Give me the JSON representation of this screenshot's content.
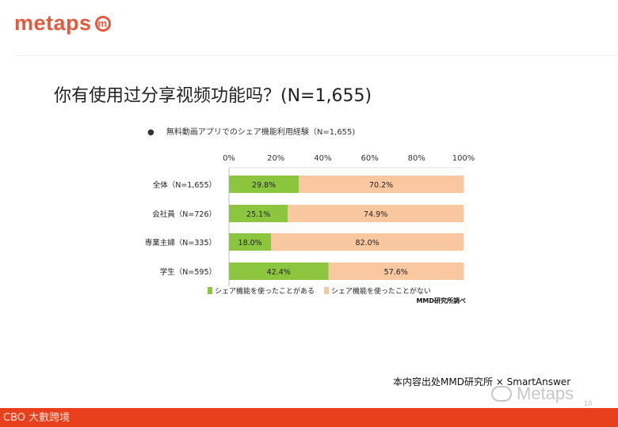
{
  "logo": {
    "text": "metaps",
    "mark": "m"
  },
  "title": "你有使用过分享视频功能吗？(N=1,655)",
  "chart_heading": {
    "bullet": "●",
    "text": "無料動画アプリでのシェア機能利用経験（N=1,655)"
  },
  "chart_data": {
    "type": "bar",
    "orientation": "horizontal",
    "stacked": true,
    "percent": true,
    "categories": [
      "全体（N=1,655）",
      "会社員（N=726）",
      "専業主婦（N=335）",
      "学生（N=595）"
    ],
    "series": [
      {
        "name": "シェア機能を使ったことがある",
        "values": [
          29.8,
          25.1,
          18.0,
          42.4
        ],
        "labels": [
          "29.8%",
          "25.1%",
          "18.0%",
          "42.4%"
        ],
        "color": "#8cc63f"
      },
      {
        "name": "シェア機能を使ったことがない",
        "values": [
          70.2,
          74.9,
          82.0,
          57.6
        ],
        "labels": [
          "70.2%",
          "74.9%",
          "82.0%",
          "57.6%"
        ],
        "color": "#f9c7a0"
      }
    ],
    "xlim": [
      0,
      100
    ],
    "xticks": [
      "0%",
      "20%",
      "40%",
      "60%",
      "80%",
      "100%"
    ],
    "tick_values": [
      0,
      20,
      40,
      60,
      80,
      100
    ],
    "legend_position": "bottom",
    "note": "MMD研究所調べ"
  },
  "source": "本内容出处MMD研究所 × SmartAnswer",
  "watermark": "Metaps",
  "page_number": "10",
  "footer_brand": "CBO 大數跨境",
  "colors": {
    "brand": "#e35b3f",
    "bottom_bar": "#e8401c",
    "axis": "#bfbfbf"
  }
}
